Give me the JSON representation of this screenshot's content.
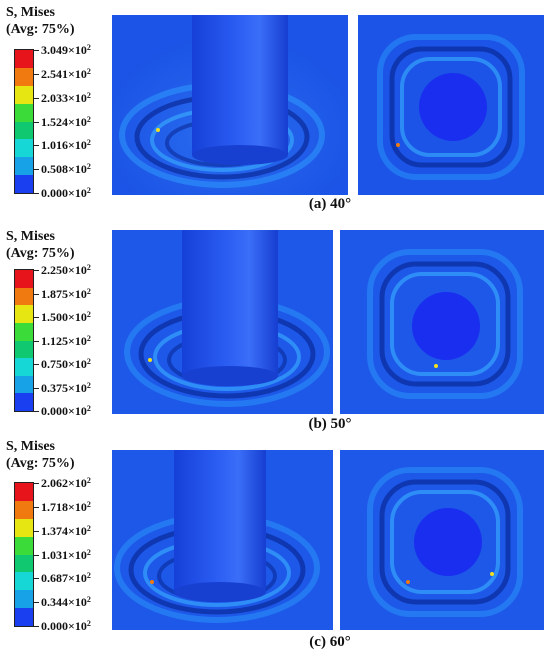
{
  "panels": [
    {
      "caption": "(a) 40°",
      "legend_title": [
        "S, Mises",
        "(Avg: 75%)"
      ],
      "legend_values": [
        "3.049×10",
        "2.541×10",
        "2.033×10",
        "1.524×10",
        "1.016×10",
        "0.508×10",
        "0.000×10"
      ],
      "exponent": "2"
    },
    {
      "caption": "(b) 50°",
      "legend_title": [
        "S, Mises",
        "(Avg: 75%)"
      ],
      "legend_values": [
        "2.250×10",
        "1.875×10",
        "1.500×10",
        "1.125×10",
        "0.750×10",
        "0.375×10",
        "0.000×10"
      ],
      "exponent": "2"
    },
    {
      "caption": "(c) 60°",
      "legend_title": [
        "S, Mises",
        "(Avg: 75%)"
      ],
      "legend_values": [
        "2.062×10",
        "1.718×10",
        "1.374×10",
        "1.031×10",
        "0.687×10",
        "0.344×10",
        "0.000×10"
      ],
      "exponent": "2"
    }
  ],
  "legend_colors": [
    "#e8141c",
    "#f07a10",
    "#e6e612",
    "#3bdc3a",
    "#10c870",
    "#17d6d6",
    "#17a2e8",
    "#1a3ff0"
  ]
}
